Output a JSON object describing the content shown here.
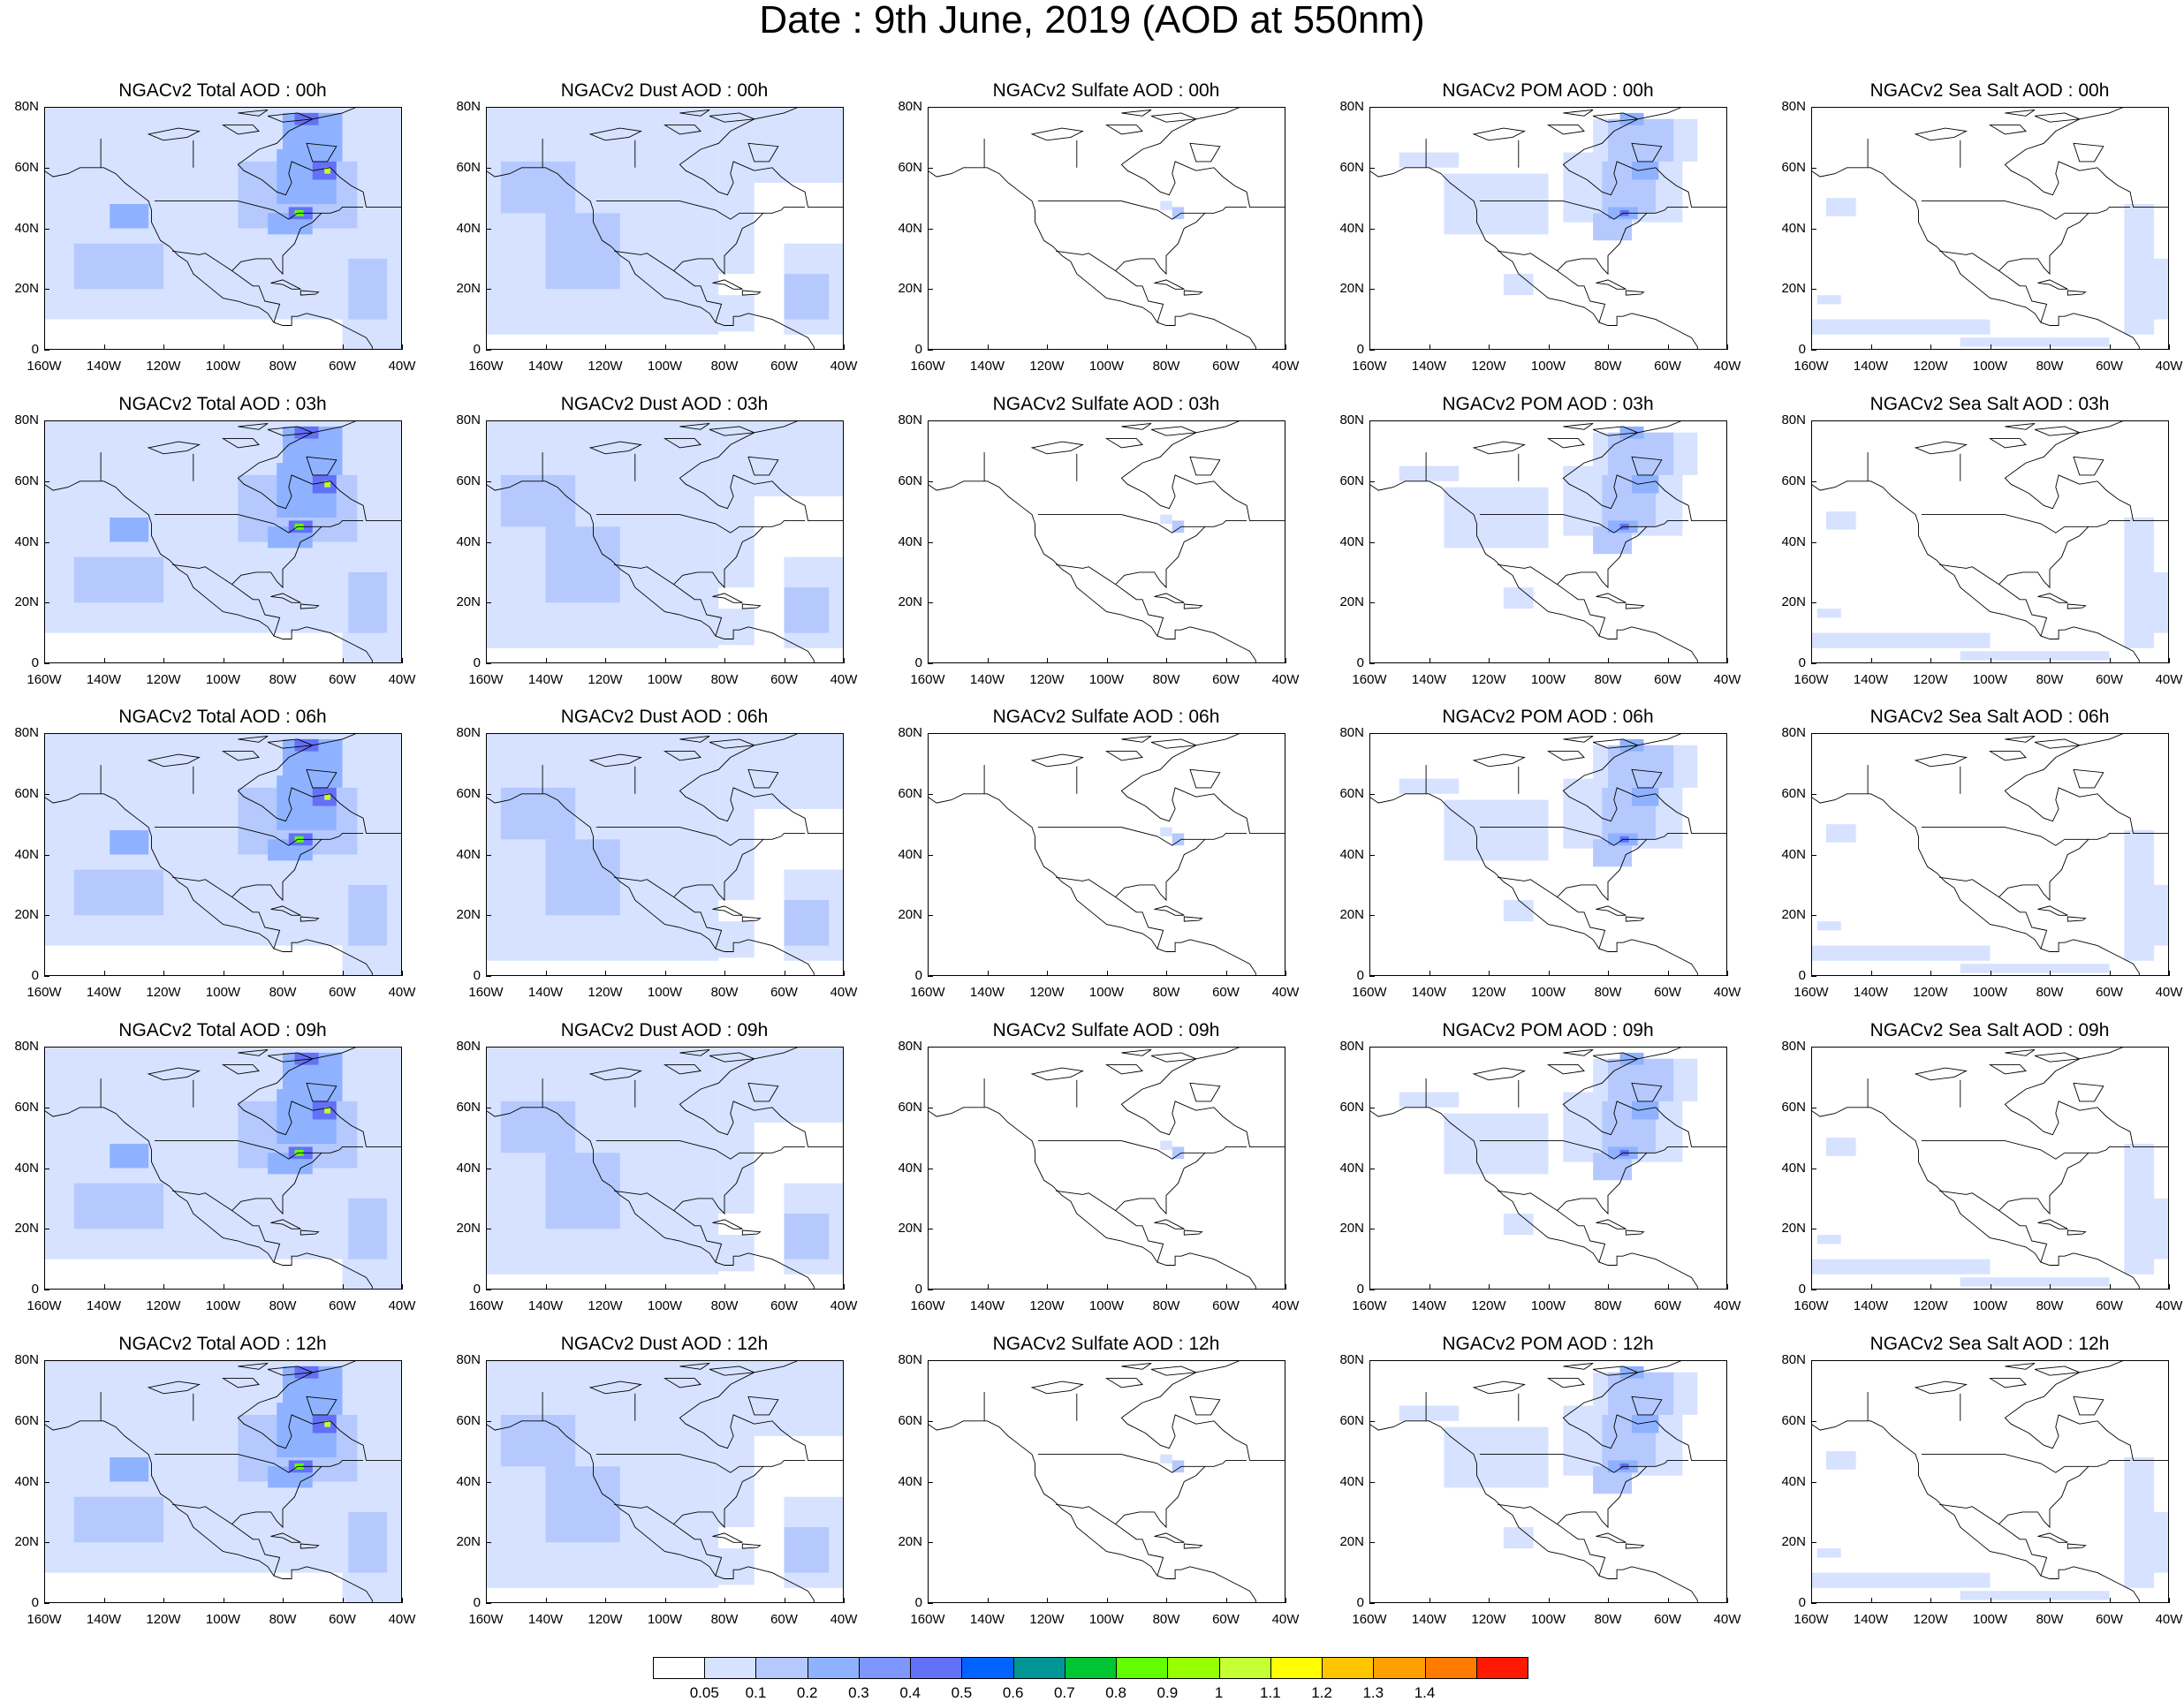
{
  "figure": {
    "title": "Date : 9th June, 2019 (AOD at 550nm)"
  },
  "panels": [
    {
      "title": "NGACv2 Total AOD : 00h",
      "species": "total",
      "hour": "00h"
    },
    {
      "title": "NGACv2 Dust AOD : 00h",
      "species": "dust",
      "hour": "00h"
    },
    {
      "title": "NGACv2 Sulfate AOD : 00h",
      "species": "sulfate",
      "hour": "00h"
    },
    {
      "title": "NGACv2 POM AOD : 00h",
      "species": "pom",
      "hour": "00h"
    },
    {
      "title": "NGACv2 Sea Salt AOD : 00h",
      "species": "seasalt",
      "hour": "00h"
    },
    {
      "title": "NGACv2 Total AOD : 03h",
      "species": "total",
      "hour": "03h"
    },
    {
      "title": "NGACv2 Dust AOD : 03h",
      "species": "dust",
      "hour": "03h"
    },
    {
      "title": "NGACv2 Sulfate AOD : 03h",
      "species": "sulfate",
      "hour": "03h"
    },
    {
      "title": "NGACv2 POM AOD : 03h",
      "species": "pom",
      "hour": "03h"
    },
    {
      "title": "NGACv2 Sea Salt AOD : 03h",
      "species": "seasalt",
      "hour": "03h"
    },
    {
      "title": "NGACv2 Total AOD : 06h",
      "species": "total",
      "hour": "06h"
    },
    {
      "title": "NGACv2 Dust AOD : 06h",
      "species": "dust",
      "hour": "06h"
    },
    {
      "title": "NGACv2 Sulfate AOD : 06h",
      "species": "sulfate",
      "hour": "06h"
    },
    {
      "title": "NGACv2 POM AOD : 06h",
      "species": "pom",
      "hour": "06h"
    },
    {
      "title": "NGACv2 Sea Salt AOD : 06h",
      "species": "seasalt",
      "hour": "06h"
    },
    {
      "title": "NGACv2 Total AOD : 09h",
      "species": "total",
      "hour": "09h"
    },
    {
      "title": "NGACv2 Dust AOD : 09h",
      "species": "dust",
      "hour": "09h"
    },
    {
      "title": "NGACv2 Sulfate AOD : 09h",
      "species": "sulfate",
      "hour": "09h"
    },
    {
      "title": "NGACv2 POM AOD : 09h",
      "species": "pom",
      "hour": "09h"
    },
    {
      "title": "NGACv2 Sea Salt  AOD : 09h",
      "species": "seasalt",
      "hour": "09h"
    },
    {
      "title": "NGACv2 Total AOD  : 12h",
      "species": "total",
      "hour": "12h"
    },
    {
      "title": "NGACv2 Dust AOD : 12h",
      "species": "dust",
      "hour": "12h"
    },
    {
      "title": "NGACv2 Sulfate AOD : 12h",
      "species": "sulfate",
      "hour": "12h"
    },
    {
      "title": "NGACv2 POM  AOD : 12h",
      "species": "pom",
      "hour": "12h"
    },
    {
      "title": "NGACv2 Sea Salt  AOD : 12h",
      "species": "seasalt",
      "hour": "12h"
    }
  ],
  "axes": {
    "lon_labels": [
      "160W",
      "140W",
      "120W",
      "100W",
      "80W",
      "60W",
      "40W"
    ],
    "lon_values": [
      -160,
      -140,
      -120,
      -100,
      -80,
      -60,
      -40
    ],
    "lat_labels": [
      "0",
      "20N",
      "40N",
      "60N",
      "80N"
    ],
    "lat_values": [
      0,
      20,
      40,
      60,
      80
    ],
    "lon_range": [
      -160,
      -40
    ],
    "lat_range": [
      0,
      80
    ]
  },
  "colorbar": {
    "labels": [
      "0.05",
      "0.1",
      "0.2",
      "0.3",
      "0.4",
      "0.5",
      "0.6",
      "0.7",
      "0.8",
      "0.9",
      "1",
      "1.1",
      "1.2",
      "1.3",
      "1.4"
    ],
    "colors": [
      "#ffffff",
      "#d6e2ff",
      "#b5c9ff",
      "#8eb2ff",
      "#7f96ff",
      "#6370f8",
      "#0063ff",
      "#009696",
      "#00c633",
      "#63ff00",
      "#96ff00",
      "#c6ff33",
      "#ffff00",
      "#ffc600",
      "#ffa000",
      "#ff7c00",
      "#ff1900"
    ]
  }
}
